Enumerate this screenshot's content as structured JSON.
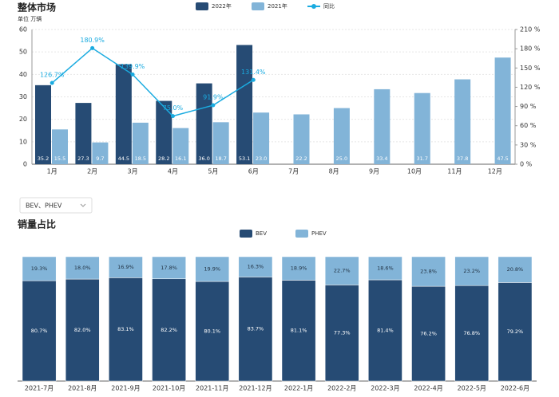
{
  "chart_data": [
    {
      "type": "bar",
      "title": "整体市场",
      "subtitle": "单位 万辆",
      "categories": [
        "1月",
        "2月",
        "3月",
        "4月",
        "5月",
        "6月",
        "7月",
        "8月",
        "9月",
        "10月",
        "11月",
        "12月"
      ],
      "series": [
        {
          "name": "2022年",
          "type": "bar",
          "color": "#264b74",
          "values": [
            35.2,
            27.3,
            44.5,
            28.2,
            36.0,
            53.1,
            null,
            null,
            null,
            null,
            null,
            null
          ],
          "value_labels": [
            "35.2",
            "27.3",
            "44.5",
            "28.2",
            "36.0",
            "53.1",
            null,
            null,
            null,
            null,
            null,
            null
          ]
        },
        {
          "name": "2021年",
          "type": "bar",
          "color": "#82b4d8",
          "values": [
            15.5,
            9.7,
            18.5,
            16.1,
            18.7,
            23.0,
            22.2,
            25.0,
            33.4,
            31.7,
            37.8,
            47.5
          ],
          "value_labels": [
            "15.5",
            "9.7",
            "18.5",
            "16.1",
            "18.7",
            "23.0",
            "22.2",
            "25.0",
            "33.4",
            "31.7",
            "37.8",
            "47.5"
          ]
        },
        {
          "name": "同比",
          "type": "line",
          "axis": "y2",
          "color": "#1aabe0",
          "values": [
            126.7,
            180.9,
            139.9,
            75.0,
            91.9,
            131.4,
            null,
            null,
            null,
            null,
            null,
            null
          ],
          "value_labels": [
            "126.7%",
            "180.9%",
            "139.9%",
            "75.0%",
            "91.9%",
            "131.4%",
            null,
            null,
            null,
            null,
            null,
            null
          ]
        }
      ],
      "ylim": [
        0,
        60
      ],
      "yticks": [
        0,
        10,
        20,
        30,
        40,
        50,
        60
      ],
      "y2lim": [
        0,
        210
      ],
      "y2ticks": [
        {
          "value": 0,
          "label": "0 %"
        },
        {
          "value": 30,
          "label": "30 %"
        },
        {
          "value": 60,
          "label": "60 %"
        },
        {
          "value": 90,
          "label": "90 %"
        },
        {
          "value": 120,
          "label": "120 %"
        },
        {
          "value": 150,
          "label": "150 %"
        },
        {
          "value": 180,
          "label": "180 %"
        },
        {
          "value": 210,
          "label": "210 %"
        }
      ],
      "grid": true
    },
    {
      "type": "stacked_bar",
      "title": "销量占比",
      "categories": [
        "2021-7月",
        "2021-8月",
        "2021-9月",
        "2021-10月",
        "2021-11月",
        "2021-12月",
        "2022-1月",
        "2022-2月",
        "2022-3月",
        "2022-4月",
        "2022-5月",
        "2022-6月"
      ],
      "series": [
        {
          "name": "BEV",
          "color": "#264b74",
          "values": [
            80.7,
            82.0,
            83.1,
            82.2,
            80.1,
            83.7,
            81.1,
            77.3,
            81.4,
            76.2,
            76.8,
            79.2
          ],
          "value_labels": [
            "80.7%",
            "82.0%",
            "83.1%",
            "82.2%",
            "80.1%",
            "83.7%",
            "81.1%",
            "77.3%",
            "81.4%",
            "76.2%",
            "76.8%",
            "79.2%"
          ]
        },
        {
          "name": "PHEV",
          "color": "#82b4d8",
          "values": [
            19.3,
            18.0,
            16.9,
            17.8,
            19.9,
            16.3,
            18.9,
            22.7,
            18.6,
            23.8,
            23.2,
            20.8
          ],
          "value_labels": [
            "19.3%",
            "18.0%",
            "16.9%",
            "17.8%",
            "19.9%",
            "16.3%",
            "18.9%",
            "22.7%",
            "18.6%",
            "23.8%",
            "23.2%",
            "20.8%"
          ]
        }
      ],
      "ylim": [
        0,
        100
      ]
    }
  ],
  "dropdown": "BEV、PHEV"
}
